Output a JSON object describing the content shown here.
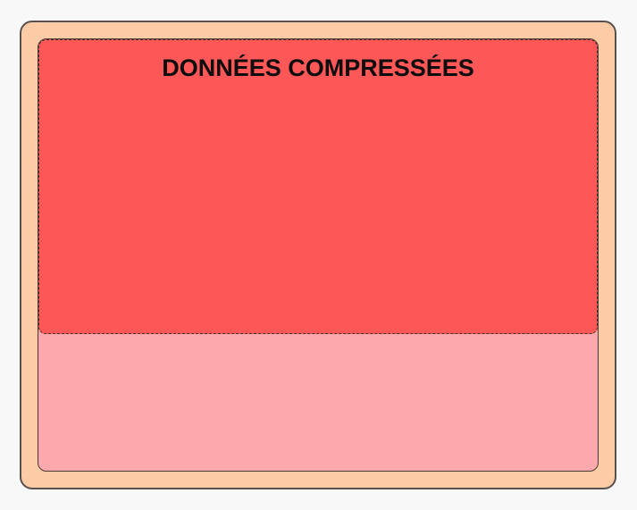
{
  "diagram": {
    "compressed_label": "DONNÉES COMPRESSÉES"
  },
  "colors": {
    "page_background": "#f8f8f8",
    "outer_fill": "#fdcba5",
    "outer_border": "#5a514e",
    "free_fill": "#fda8ac",
    "free_border": "#4c3a34",
    "compressed_fill": "#fe5757",
    "compressed_border": "#432f2b",
    "label_color": "#0d0d0d"
  }
}
